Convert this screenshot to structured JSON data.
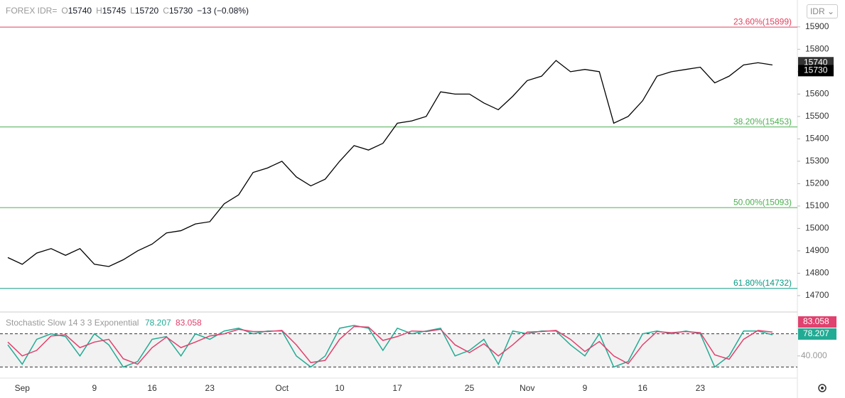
{
  "chart_data": [
    {
      "type": "line",
      "symbol": "FOREX IDR=",
      "legend_fields": [
        {
          "label": "O",
          "value": 15740
        },
        {
          "label": "H",
          "value": 15745
        },
        {
          "label": "L",
          "value": 15720
        },
        {
          "label": "C",
          "value": 15730
        }
      ],
      "change": "−13 (−0.08%)",
      "currency": "IDR",
      "categories": [
        null,
        "Sep",
        null,
        null,
        null,
        null,
        "9",
        null,
        null,
        null,
        "16",
        null,
        null,
        null,
        "23",
        null,
        null,
        null,
        null,
        "Oct",
        null,
        null,
        null,
        "10",
        null,
        null,
        null,
        "17",
        null,
        null,
        null,
        null,
        "25",
        null,
        null,
        null,
        "Nov",
        null,
        null,
        null,
        "9",
        null,
        null,
        null,
        "16",
        null,
        null,
        null,
        "23",
        null,
        null,
        null,
        null,
        null
      ],
      "values": [
        14870,
        14840,
        14890,
        14910,
        14880,
        14910,
        14840,
        14830,
        14860,
        14900,
        14930,
        14980,
        14990,
        15020,
        15030,
        15110,
        15150,
        15250,
        15270,
        15300,
        15230,
        15190,
        15220,
        15300,
        15370,
        15350,
        15380,
        15470,
        15480,
        15500,
        15610,
        15600,
        15600,
        15560,
        15530,
        15590,
        15660,
        15680,
        15750,
        15700,
        15710,
        15700,
        15470,
        15500,
        15570,
        15680,
        15700,
        15710,
        15720,
        15650,
        15680,
        15730,
        15740,
        15730
      ],
      "color": "#000000",
      "ylim": [
        14630,
        16020
      ],
      "yticks": [
        14700,
        14800,
        14900,
        15000,
        15100,
        15200,
        15300,
        15400,
        15500,
        15600,
        15700,
        15800,
        15900
      ],
      "levels": [
        {
          "label": "23.60%(15899)",
          "value": 15899,
          "color": "#e0415d"
        },
        {
          "label": "38.20%(15453)",
          "value": 15453,
          "color": "#4caf50"
        },
        {
          "label": "50.00%(15093)",
          "value": 15093,
          "color": "#4caf50"
        },
        {
          "label": "61.80%(14732)",
          "value": 14732,
          "color": "#089981"
        }
      ],
      "price_tags": [
        {
          "value": 15740,
          "color": "#333333"
        },
        {
          "value": 15730,
          "color": "#000000"
        }
      ]
    },
    {
      "type": "stochastic",
      "title": "Stochastic Slow 14 3 3 Exponential",
      "ylim": [
        0,
        118
      ],
      "yticks": [
        {
          "value": 40,
          "label": "40.000"
        }
      ],
      "bands": [
        20,
        80
      ],
      "series": [
        {
          "name": "78.207",
          "color": "#22ab94",
          "values": [
            60,
            25,
            70,
            80,
            75,
            40,
            80,
            60,
            20,
            30,
            70,
            75,
            40,
            80,
            70,
            85,
            90,
            80,
            85,
            85,
            40,
            20,
            40,
            90,
            95,
            90,
            50,
            90,
            80,
            85,
            90,
            40,
            50,
            70,
            25,
            85,
            80,
            85,
            85,
            60,
            40,
            80,
            20,
            30,
            80,
            85,
            80,
            85,
            80,
            20,
            40,
            85,
            85,
            78.207
          ]
        },
        {
          "name": "83.058",
          "color": "#e0416e",
          "values": [
            65,
            40,
            50,
            76,
            78,
            55,
            65,
            70,
            35,
            25,
            55,
            74,
            55,
            65,
            76,
            80,
            88,
            84,
            84,
            86,
            60,
            28,
            32,
            70,
            93,
            92,
            68,
            75,
            85,
            84,
            88,
            60,
            46,
            62,
            40,
            60,
            83,
            84,
            86,
            70,
            48,
            66,
            40,
            26,
            60,
            84,
            82,
            84,
            82,
            42,
            34,
            70,
            86,
            83.058
          ]
        }
      ]
    }
  ]
}
